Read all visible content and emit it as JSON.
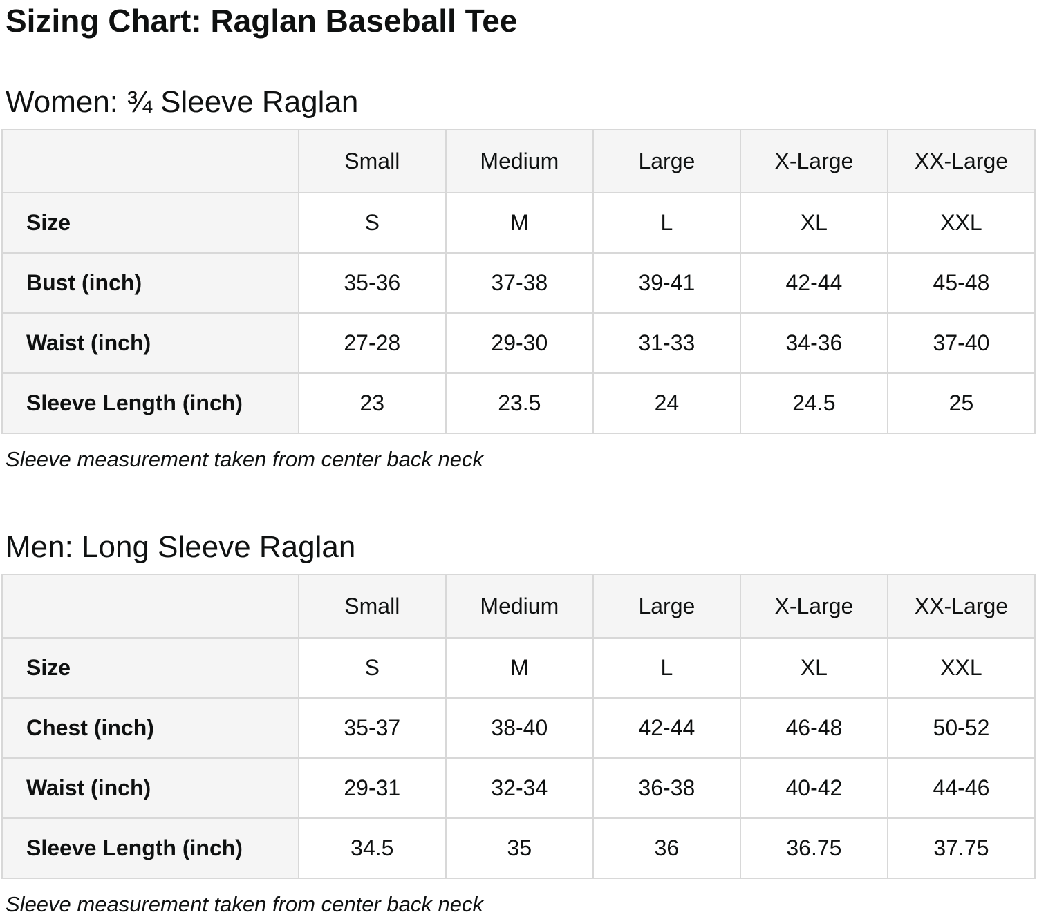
{
  "page": {
    "title": "Sizing Chart: Raglan Baseball Tee",
    "text_color": "#0f1111",
    "header_bg": "#f5f5f5",
    "border_color": "#d8d8d8"
  },
  "sections": [
    {
      "heading": "Women: ¾ Sleeve Raglan",
      "note": "Sleeve measurement taken from center back neck",
      "table": {
        "size_headers": [
          "Small",
          "Medium",
          "Large",
          "X-Large",
          "XX-Large"
        ],
        "rows": [
          {
            "label": "Size",
            "values": [
              "S",
              "M",
              "L",
              "XL",
              "XXL"
            ]
          },
          {
            "label": "Bust (inch)",
            "values": [
              "35-36",
              "37-38",
              "39-41",
              "42-44",
              "45-48"
            ]
          },
          {
            "label": "Waist (inch)",
            "values": [
              "27-28",
              "29-30",
              "31-33",
              "34-36",
              "37-40"
            ]
          },
          {
            "label": "Sleeve Length (inch)",
            "values": [
              "23",
              "23.5",
              "24",
              "24.5",
              "25"
            ]
          }
        ]
      }
    },
    {
      "heading": "Men: Long Sleeve Raglan",
      "note": "Sleeve measurement taken from center back neck",
      "table": {
        "size_headers": [
          "Small",
          "Medium",
          "Large",
          "X-Large",
          "XX-Large"
        ],
        "rows": [
          {
            "label": "Size",
            "values": [
              "S",
              "M",
              "L",
              "XL",
              "XXL"
            ]
          },
          {
            "label": "Chest (inch)",
            "values": [
              "35-37",
              "38-40",
              "42-44",
              "46-48",
              "50-52"
            ]
          },
          {
            "label": "Waist (inch)",
            "values": [
              "29-31",
              "32-34",
              "36-38",
              "40-42",
              "44-46"
            ]
          },
          {
            "label": "Sleeve Length (inch)",
            "values": [
              "34.5",
              "35",
              "36",
              "36.75",
              "37.75"
            ]
          }
        ]
      }
    }
  ]
}
